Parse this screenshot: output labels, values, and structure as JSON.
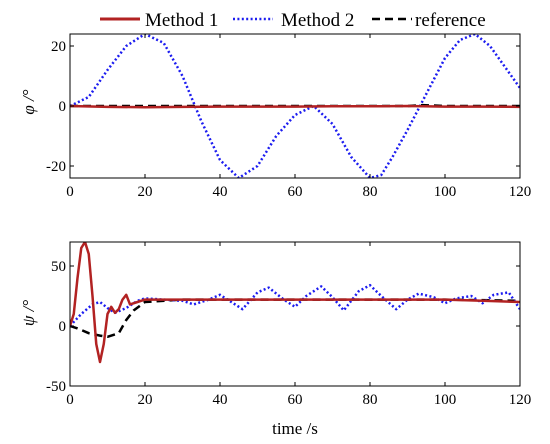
{
  "chart_data": [
    {
      "type": "line",
      "title": "",
      "xlabel": "",
      "ylabel": "φ /°",
      "xlim": [
        0,
        120
      ],
      "ylim": [
        -24,
        24
      ],
      "xticks": [
        "0",
        "20",
        "40",
        "60",
        "80",
        "100",
        "120"
      ],
      "yticks": [
        "-20",
        "0",
        "20"
      ],
      "grid": false,
      "legend": {
        "placement": "top-center",
        "entries": [
          "Method 1",
          "Method 2",
          "reference"
        ]
      },
      "series": [
        {
          "name": "Method 1",
          "color": "#b22222",
          "style": "solid",
          "x": [
            0,
            10,
            20,
            30,
            40,
            50,
            60,
            70,
            80,
            90,
            100,
            110,
            120
          ],
          "y": [
            0,
            -0.3,
            -0.4,
            -0.3,
            -0.2,
            -0.2,
            -0.2,
            -0.1,
            -0.1,
            0,
            -0.2,
            -0.2,
            -0.3
          ]
        },
        {
          "name": "Method 2",
          "color": "#1c1cf0",
          "style": "dotted",
          "x": [
            0,
            5,
            10,
            15,
            20,
            25,
            30,
            35,
            40,
            45,
            50,
            55,
            60,
            65,
            70,
            75,
            80,
            83,
            86,
            90,
            95,
            100,
            104,
            108,
            112,
            116,
            120
          ],
          "y": [
            0,
            3,
            12,
            20,
            24,
            21,
            10,
            -5,
            -18,
            -24,
            -20,
            -10,
            -3,
            0,
            -6,
            -17,
            -24,
            -23,
            -17,
            -8,
            4,
            16,
            22,
            24,
            20,
            13,
            6
          ]
        },
        {
          "name": "reference",
          "color": "#000000",
          "style": "dashed",
          "x": [
            0,
            30,
            60,
            90,
            94,
            100,
            120
          ],
          "y": [
            0,
            0,
            0,
            0,
            0.3,
            0,
            0
          ]
        }
      ]
    },
    {
      "type": "line",
      "title": "",
      "xlabel": "time /s",
      "ylabel": "ψ /°",
      "xlim": [
        0,
        120
      ],
      "ylim": [
        -50,
        70
      ],
      "xticks": [
        "0",
        "20",
        "40",
        "60",
        "80",
        "100",
        "120"
      ],
      "yticks": [
        "-50",
        "0",
        "50"
      ],
      "grid": false,
      "series": [
        {
          "name": "Method 1",
          "color": "#b22222",
          "style": "solid",
          "x": [
            0,
            1,
            2,
            3,
            4,
            5,
            6,
            7,
            8,
            9,
            10,
            11,
            12,
            13,
            14,
            15,
            16,
            18,
            20,
            25,
            30,
            40,
            50,
            60,
            70,
            80,
            90,
            100,
            110,
            120
          ],
          "y": [
            0,
            10,
            40,
            65,
            70,
            60,
            25,
            -15,
            -30,
            -15,
            10,
            16,
            11,
            14,
            22,
            26,
            18,
            20,
            22,
            22,
            22,
            22,
            22,
            22,
            22,
            22,
            22,
            22,
            21,
            20
          ]
        },
        {
          "name": "Method 2",
          "color": "#1c1cf0",
          "style": "dotted",
          "x": [
            0,
            3,
            6,
            8,
            10,
            12,
            15,
            18,
            20,
            25,
            30,
            33,
            37,
            40,
            43,
            46,
            50,
            53,
            57,
            60,
            63,
            67,
            70,
            73,
            77,
            80,
            83,
            87,
            90,
            93,
            97,
            100,
            103,
            107,
            110,
            113,
            117,
            120
          ],
          "y": [
            0,
            10,
            18,
            20,
            15,
            11,
            15,
            21,
            23,
            22,
            21,
            18,
            22,
            26,
            20,
            14,
            28,
            32,
            22,
            16,
            25,
            33,
            24,
            13,
            29,
            34,
            25,
            14,
            22,
            27,
            24,
            19,
            23,
            25,
            19,
            26,
            28,
            14
          ]
        },
        {
          "name": "reference",
          "color": "#000000",
          "style": "dashed",
          "x": [
            0,
            2,
            5,
            8,
            10,
            13,
            15,
            17,
            20,
            30,
            60,
            80,
            100,
            120
          ],
          "y": [
            0,
            -2,
            -6,
            -8,
            -9,
            -6,
            5,
            13,
            20,
            22,
            22,
            22,
            22,
            21
          ]
        }
      ]
    }
  ]
}
